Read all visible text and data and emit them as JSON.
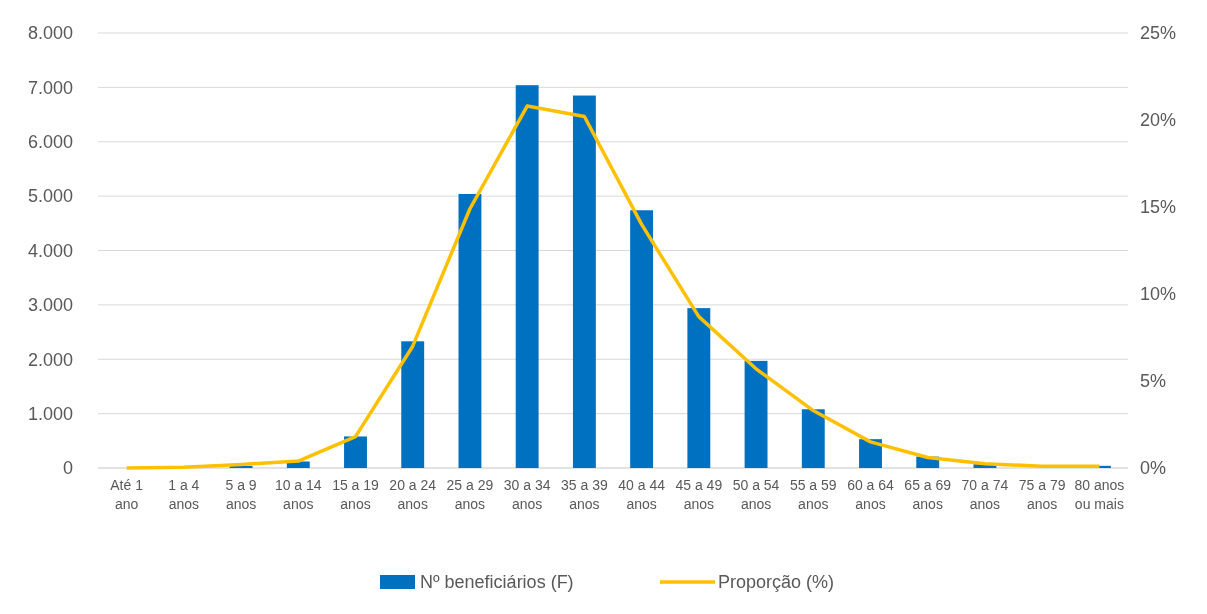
{
  "chart_data": {
    "type": "bar",
    "categories": [
      "Até 1 ano",
      "1 a 4 anos",
      "5 a 9 anos",
      "10 a 14 anos",
      "15 a 19 anos",
      "20 a 24 anos",
      "25 a 29 anos",
      "30 a 34 anos",
      "35 a 39 anos",
      "40 a 44 anos",
      "45 a 49 anos",
      "50 a 54 anos",
      "55 a 59 anos",
      "60 a 64 anos",
      "65 a 69 anos",
      "70 a 74 anos",
      "75 a 79 anos",
      "80 anos ou mais"
    ],
    "series": [
      {
        "name": "Nº beneficiários (F)",
        "color": "#0070c0",
        "values": [
          0,
          10,
          40,
          120,
          580,
          2330,
          5040,
          7040,
          6850,
          4740,
          2940,
          1970,
          1080,
          530,
          210,
          70,
          null,
          40
        ]
      },
      {
        "name": "Proporção (%)",
        "type": "line",
        "axis": "y2",
        "color": "#ffc000",
        "values": [
          0,
          0.05,
          0.2,
          0.4,
          1.8,
          7.0,
          14.9,
          20.8,
          20.2,
          14.0,
          8.7,
          5.7,
          3.3,
          1.5,
          0.6,
          0.25,
          0.1,
          0.1
        ]
      }
    ],
    "ylim": [
      0,
      8000
    ],
    "yticks": [
      {
        "value": 0,
        "label": "0"
      },
      {
        "value": 1000,
        "label": "1.000"
      },
      {
        "value": 2000,
        "label": "2.000"
      },
      {
        "value": 3000,
        "label": "3.000"
      },
      {
        "value": 4000,
        "label": "4.000"
      },
      {
        "value": 5000,
        "label": "5.000"
      },
      {
        "value": 6000,
        "label": "6.000"
      },
      {
        "value": 7000,
        "label": "7.000"
      },
      {
        "value": 8000,
        "label": "8.000"
      }
    ],
    "y2lim": [
      0,
      25
    ],
    "y2ticks": [
      {
        "value": 0,
        "label": "0%"
      },
      {
        "value": 5,
        "label": "5%"
      },
      {
        "value": 10,
        "label": "10%"
      },
      {
        "value": 15,
        "label": "15%"
      },
      {
        "value": 20,
        "label": "20%"
      },
      {
        "value": 25,
        "label": "25%"
      }
    ],
    "grid": "y",
    "legend": "bottom"
  }
}
